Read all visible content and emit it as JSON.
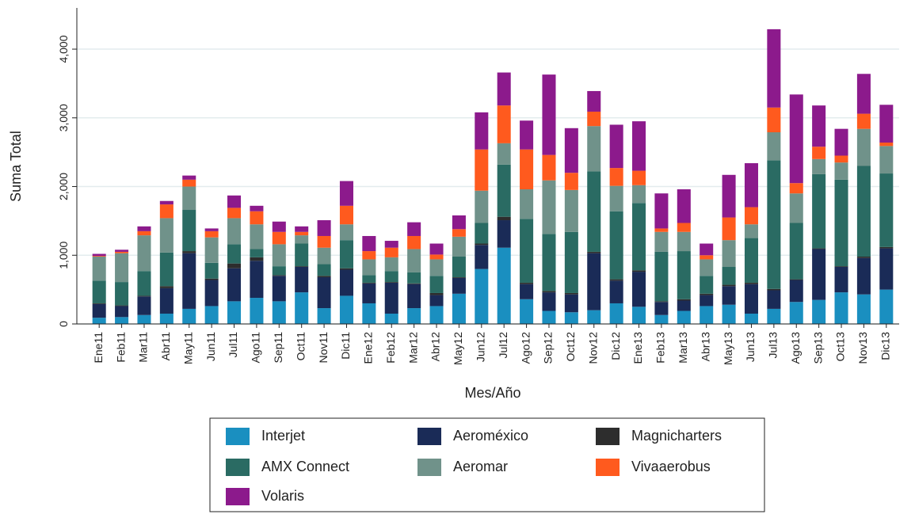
{
  "chart_data": {
    "type": "stacked_bar",
    "x_label": "Mes/Año",
    "y_label": "Suma Total",
    "categories": [
      "Ene11",
      "Feb11",
      "Mar11",
      "Abr11",
      "May11",
      "Jun11",
      "Jul11",
      "Ago11",
      "Sep11",
      "Oct11",
      "Nov11",
      "Dic11",
      "Ene12",
      "Feb12",
      "Mar12",
      "Abr12",
      "May12",
      "Jun12",
      "Jul12",
      "Ago12",
      "Sep12",
      "Oct12",
      "Nov12",
      "Dic12",
      "Ene13",
      "Feb13",
      "Mar13",
      "Abr13",
      "May13",
      "Jun13",
      "Jul13",
      "Ago13",
      "Sep13",
      "Oct13",
      "Nov13",
      "Dic13"
    ],
    "series": [
      {
        "name": "Interjet",
        "color": "#1a8fc0",
        "values": [
          90,
          100,
          130,
          150,
          220,
          260,
          330,
          380,
          330,
          460,
          230,
          410,
          300,
          150,
          230,
          260,
          440,
          800,
          1110,
          360,
          190,
          170,
          200,
          300,
          250,
          130,
          190,
          260,
          280,
          150,
          220,
          320,
          350,
          460,
          430,
          500
        ]
      },
      {
        "name": "Aeroméxico",
        "color": "#1a2b57",
        "values": [
          200,
          160,
          270,
          370,
          810,
          380,
          480,
          540,
          370,
          370,
          450,
          380,
          290,
          450,
          350,
          160,
          230,
          350,
          400,
          220,
          270,
          260,
          830,
          330,
          510,
          190,
          150,
          160,
          270,
          430,
          270,
          320,
          740,
          370,
          530,
          600
        ]
      },
      {
        "name": "Magnicharters",
        "color": "#2d2d2d",
        "values": [
          10,
          10,
          10,
          30,
          30,
          20,
          70,
          50,
          10,
          10,
          20,
          20,
          10,
          10,
          10,
          30,
          10,
          20,
          50,
          20,
          20,
          20,
          20,
          20,
          20,
          10,
          20,
          20,
          20,
          20,
          20,
          10,
          10,
          10,
          20,
          20
        ]
      },
      {
        "name": "AMX Connect",
        "color": "#2a6b63",
        "values": [
          330,
          340,
          360,
          490,
          600,
          230,
          280,
          120,
          130,
          330,
          170,
          410,
          110,
          160,
          160,
          250,
          300,
          300,
          760,
          930,
          830,
          890,
          1170,
          990,
          980,
          720,
          700,
          260,
          260,
          650,
          1870,
          820,
          1080,
          1260,
          1320,
          1070
        ]
      },
      {
        "name": "Aeromar",
        "color": "#70928a",
        "values": [
          350,
          420,
          520,
          500,
          340,
          370,
          380,
          360,
          320,
          120,
          240,
          230,
          230,
          200,
          340,
          240,
          290,
          470,
          310,
          430,
          780,
          610,
          660,
          370,
          260,
          290,
          280,
          240,
          390,
          200,
          410,
          430,
          220,
          250,
          540,
          400
        ]
      },
      {
        "name": "Vivaaerobus",
        "color": "#ff5a1e",
        "values": [
          10,
          20,
          60,
          200,
          100,
          90,
          150,
          190,
          180,
          50,
          170,
          270,
          120,
          140,
          190,
          70,
          110,
          600,
          550,
          580,
          370,
          250,
          210,
          260,
          210,
          50,
          130,
          60,
          330,
          250,
          360,
          150,
          180,
          100,
          220,
          50
        ]
      },
      {
        "name": "Volaris",
        "color": "#8c1a8c",
        "values": [
          30,
          30,
          70,
          50,
          60,
          40,
          180,
          80,
          150,
          80,
          230,
          360,
          220,
          100,
          200,
          160,
          200,
          540,
          480,
          420,
          1170,
          650,
          300,
          630,
          720,
          510,
          490,
          170,
          620,
          640,
          1140,
          1290,
          600,
          390,
          580,
          550
        ]
      }
    ],
    "ylim": [
      0,
      4600
    ],
    "yticks": [
      0,
      {
        "value": 1000,
        "label": "1,000"
      },
      {
        "value": 2000,
        "label": "2,000"
      },
      {
        "value": 3000,
        "label": "3,000"
      },
      {
        "value": 4000,
        "label": "4,000"
      }
    ],
    "grid": true
  }
}
